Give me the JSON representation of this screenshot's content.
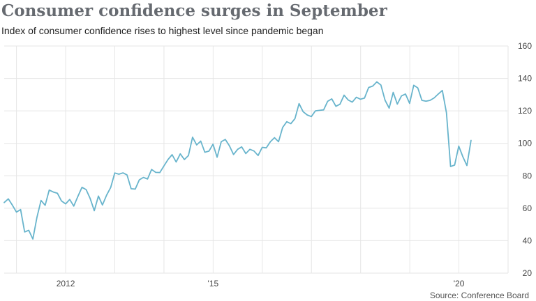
{
  "title": "Consumer confidence surges in September",
  "subtitle": "Index of consumer confidence rises to highest level since pandemic began",
  "source": "Source: Conference Board",
  "colors": {
    "line": "#68b4cc",
    "grid": "#e6e6e6",
    "title": "#666a70"
  },
  "chart_data": {
    "type": "line",
    "title": "Consumer confidence surges in September",
    "subtitle": "Index of consumer confidence rises to highest level since pandemic began",
    "xlabel": "",
    "ylabel": "",
    "ylim": [
      20,
      160
    ],
    "xlim": [
      2010.75,
      2021.0
    ],
    "grid": true,
    "y_axis_side": "right",
    "y_ticks": [
      20,
      40,
      60,
      80,
      100,
      120,
      140,
      160
    ],
    "x_ticks": [
      {
        "value": 2012,
        "label": "2012"
      },
      {
        "value": 2015,
        "label": "'15"
      },
      {
        "value": 2020,
        "label": "'20"
      }
    ],
    "series": [
      {
        "name": "Consumer confidence index",
        "start": 2010.75,
        "step": 0.0833,
        "values": [
          63.5,
          65.8,
          61.9,
          57.6,
          59.2,
          45.4,
          46.4,
          41.0,
          54.3,
          64.8,
          61.8,
          71.2,
          70.0,
          69.2,
          64.5,
          62.7,
          65.4,
          61.3,
          67.3,
          72.9,
          71.5,
          66.0,
          58.5,
          67.5,
          62.0,
          68.0,
          72.8,
          81.7,
          81.0,
          81.8,
          80.5,
          72.0,
          71.8,
          77.5,
          79.0,
          78.0,
          83.9,
          82.1,
          82.0,
          86.0,
          90.0,
          93.0,
          88.5,
          93.5,
          90.0,
          92.5,
          103.8,
          99.0,
          101.4,
          94.5,
          95.2,
          99.5,
          91.4,
          101.0,
          102.4,
          98.5,
          93.1,
          96.3,
          97.8,
          93.7,
          96.3,
          95.3,
          92.5,
          97.5,
          97.2,
          101.0,
          103.5,
          101.0,
          109.8,
          113.3,
          112.1,
          115.2,
          124.5,
          119.5,
          117.5,
          116.5,
          120.0,
          120.3,
          120.6,
          125.9,
          127.4,
          122.8,
          124.1,
          129.7,
          126.7,
          125.4,
          128.4,
          127.2,
          127.9,
          134.4,
          135.3,
          137.9,
          135.9,
          126.6,
          121.7,
          131.4,
          124.2,
          129.2,
          130.4,
          124.6,
          135.8,
          134.2,
          126.5,
          126.0,
          126.5,
          128.0,
          130.4,
          132.6,
          118.8,
          85.7,
          86.6,
          98.3,
          91.7,
          86.3,
          101.8
        ]
      }
    ]
  }
}
